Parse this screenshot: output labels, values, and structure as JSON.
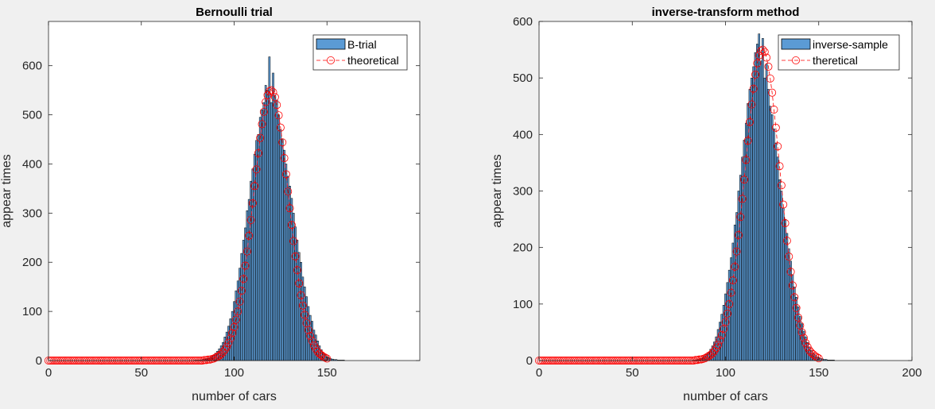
{
  "figure": {
    "background": "#f0f0f0"
  },
  "chart_data": [
    {
      "type": "bar",
      "title": "Bernoulli trial",
      "xlabel": "number of cars",
      "ylabel": "appear times",
      "xlim": [
        0,
        200
      ],
      "ylim": [
        0,
        690
      ],
      "xticks": [
        0,
        50,
        100,
        150
      ],
      "xtick_labels": [
        "0",
        "50",
        "100",
        "150"
      ],
      "yticks": [
        0,
        100,
        200,
        300,
        400,
        500,
        600
      ],
      "ytick_labels": [
        "0",
        "100",
        "200",
        "300",
        "400",
        "500",
        "600"
      ],
      "grid": false,
      "legend_position": "top-right",
      "legend": [
        {
          "label": "B-trial",
          "kind": "bar"
        },
        {
          "label": "theoretical",
          "kind": "line-circle"
        }
      ],
      "colors": {
        "bar_fill": "#5b9bd5",
        "bar_edge": "#000000",
        "theory": "#ff0000"
      },
      "x": [
        70,
        71,
        72,
        73,
        74,
        75,
        76,
        77,
        78,
        79,
        80,
        81,
        82,
        83,
        84,
        85,
        86,
        87,
        88,
        89,
        90,
        91,
        92,
        93,
        94,
        95,
        96,
        97,
        98,
        99,
        100,
        101,
        102,
        103,
        104,
        105,
        106,
        107,
        108,
        109,
        110,
        111,
        112,
        113,
        114,
        115,
        116,
        117,
        118,
        119,
        120,
        121,
        122,
        123,
        124,
        125,
        126,
        127,
        128,
        129,
        130,
        131,
        132,
        133,
        134,
        135,
        136,
        137,
        138,
        139,
        140,
        141,
        142,
        143,
        144,
        145,
        146,
        147,
        148,
        149,
        150,
        151,
        152,
        153,
        154,
        155,
        156,
        157,
        158,
        159,
        160,
        161,
        162,
        163,
        164,
        165,
        166,
        167,
        168,
        169,
        170,
        171,
        172,
        173,
        174,
        175,
        176,
        177,
        178,
        179,
        180
      ],
      "values": [
        0,
        0,
        0,
        0,
        0,
        0,
        0,
        0,
        0,
        1,
        1,
        1,
        1,
        2,
        3,
        4,
        5,
        6,
        8,
        11,
        15,
        19,
        24,
        30,
        37,
        48,
        58,
        70,
        85,
        100,
        120,
        142,
        162,
        188,
        218,
        245,
        270,
        305,
        328,
        365,
        390,
        420,
        448,
        460,
        495,
        510,
        525,
        560,
        550,
        618,
        525,
        585,
        540,
        530,
        500,
        470,
        450,
        428,
        400,
        375,
        355,
        330,
        300,
        272,
        245,
        220,
        200,
        170,
        150,
        130,
        110,
        92,
        80,
        62,
        52,
        40,
        30,
        22,
        16,
        12,
        8,
        6,
        4,
        3,
        2,
        2,
        1,
        1,
        1,
        1,
        0,
        0,
        0,
        0,
        0,
        0,
        0,
        0,
        0,
        0,
        0,
        0,
        0,
        0,
        0,
        0,
        0,
        0,
        0,
        0,
        0
      ],
      "theory_x": [
        0,
        1,
        2,
        3,
        4,
        5,
        6,
        7,
        8,
        9,
        10,
        11,
        12,
        13,
        14,
        15,
        16,
        17,
        18,
        19,
        20,
        21,
        22,
        23,
        24,
        25,
        26,
        27,
        28,
        29,
        30,
        31,
        32,
        33,
        34,
        35,
        36,
        37,
        38,
        39,
        40,
        41,
        42,
        43,
        44,
        45,
        46,
        47,
        48,
        49,
        50,
        51,
        52,
        53,
        54,
        55,
        56,
        57,
        58,
        59,
        60,
        61,
        62,
        63,
        64,
        65,
        66,
        67,
        68,
        69,
        70,
        71,
        72,
        73,
        74,
        75,
        76,
        77,
        78,
        79,
        80,
        81,
        82,
        83,
        84,
        85,
        86,
        87,
        88,
        89,
        90,
        91,
        92,
        93,
        94,
        95,
        96,
        97,
        98,
        99,
        100,
        101,
        102,
        103,
        104,
        105,
        106,
        107,
        108,
        109,
        110,
        111,
        112,
        113,
        114,
        115,
        116,
        117,
        118,
        119,
        120,
        121,
        122,
        123,
        124,
        125,
        126,
        127,
        128,
        129,
        130,
        131,
        132,
        133,
        134,
        135,
        136,
        137,
        138,
        139,
        140,
        141,
        142,
        143,
        144,
        145,
        146,
        147,
        148,
        149,
        150
      ],
      "theory_y": [
        0,
        0,
        0,
        0,
        0,
        0,
        0,
        0,
        0,
        0,
        0,
        0,
        0,
        0,
        0,
        0,
        0,
        0,
        0,
        0,
        0,
        0,
        0,
        0,
        0,
        0,
        0,
        0,
        0,
        0,
        0,
        0,
        0,
        0,
        0,
        0,
        0,
        0,
        0,
        0,
        0,
        0,
        0,
        0,
        0,
        0,
        0,
        0,
        0,
        0,
        0,
        0,
        0,
        0,
        0,
        0,
        0,
        0,
        0,
        0,
        0,
        0,
        0,
        0,
        0,
        0,
        0,
        0,
        0,
        0,
        0,
        0,
        0,
        0,
        0,
        0,
        0,
        0,
        0,
        0,
        0,
        0,
        0,
        0,
        1,
        1,
        2,
        2,
        3,
        4,
        6,
        8,
        10,
        13,
        17,
        22,
        28,
        36,
        45,
        56,
        68,
        83,
        100,
        120,
        142,
        166,
        193,
        222,
        254,
        286,
        320,
        355,
        389,
        422,
        453,
        481,
        506,
        526,
        540,
        548,
        550,
        546,
        536,
        520,
        499,
        474,
        444,
        412,
        379,
        344,
        310,
        276,
        243,
        212,
        184,
        157,
        133,
        112,
        93,
        76,
        62,
        50,
        40,
        31,
        24,
        18,
        14,
        11,
        8,
        6,
        4
      ]
    },
    {
      "type": "bar",
      "title": "inverse-transform method",
      "xlabel": "number of cars",
      "ylabel": "appear times",
      "xlim": [
        0,
        200
      ],
      "ylim": [
        0,
        600
      ],
      "xticks": [
        0,
        50,
        100,
        150,
        200
      ],
      "xtick_labels": [
        "0",
        "50",
        "100",
        "150",
        "200"
      ],
      "yticks": [
        0,
        100,
        200,
        300,
        400,
        500,
        600
      ],
      "ytick_labels": [
        "0",
        "100",
        "200",
        "300",
        "400",
        "500",
        "600"
      ],
      "grid": false,
      "legend_position": "top-right",
      "legend": [
        {
          "label": "inverse-sample",
          "kind": "bar"
        },
        {
          "label": "theretical",
          "kind": "line-circle"
        }
      ],
      "colors": {
        "bar_fill": "#5b9bd5",
        "bar_edge": "#000000",
        "theory": "#ff0000"
      },
      "x": [
        75,
        76,
        77,
        78,
        79,
        80,
        81,
        82,
        83,
        84,
        85,
        86,
        87,
        88,
        89,
        90,
        91,
        92,
        93,
        94,
        95,
        96,
        97,
        98,
        99,
        100,
        101,
        102,
        103,
        104,
        105,
        106,
        107,
        108,
        109,
        110,
        111,
        112,
        113,
        114,
        115,
        116,
        117,
        118,
        119,
        120,
        121,
        122,
        123,
        124,
        125,
        126,
        127,
        128,
        129,
        130,
        131,
        132,
        133,
        134,
        135,
        136,
        137,
        138,
        139,
        140,
        141,
        142,
        143,
        144,
        145,
        146,
        147,
        148,
        149,
        150,
        151,
        152,
        153,
        154,
        155,
        156,
        157,
        158,
        159,
        160
      ],
      "values": [
        0,
        0,
        0,
        0,
        0,
        0,
        0,
        0,
        1,
        1,
        2,
        3,
        4,
        6,
        8,
        11,
        15,
        20,
        26,
        33,
        42,
        55,
        68,
        82,
        98,
        118,
        138,
        160,
        182,
        208,
        240,
        262,
        300,
        328,
        360,
        390,
        420,
        455,
        480,
        500,
        520,
        545,
        560,
        578,
        530,
        570,
        500,
        525,
        480,
        450,
        435,
        410,
        385,
        360,
        320,
        300,
        270,
        250,
        225,
        198,
        176,
        152,
        130,
        112,
        95,
        78,
        65,
        52,
        42,
        32,
        24,
        18,
        13,
        10,
        7,
        5,
        4,
        3,
        2,
        2,
        1,
        1,
        1,
        1,
        0,
        0
      ],
      "theory_x": [
        0,
        1,
        2,
        3,
        4,
        5,
        6,
        7,
        8,
        9,
        10,
        11,
        12,
        13,
        14,
        15,
        16,
        17,
        18,
        19,
        20,
        21,
        22,
        23,
        24,
        25,
        26,
        27,
        28,
        29,
        30,
        31,
        32,
        33,
        34,
        35,
        36,
        37,
        38,
        39,
        40,
        41,
        42,
        43,
        44,
        45,
        46,
        47,
        48,
        49,
        50,
        51,
        52,
        53,
        54,
        55,
        56,
        57,
        58,
        59,
        60,
        61,
        62,
        63,
        64,
        65,
        66,
        67,
        68,
        69,
        70,
        71,
        72,
        73,
        74,
        75,
        76,
        77,
        78,
        79,
        80,
        81,
        82,
        83,
        84,
        85,
        86,
        87,
        88,
        89,
        90,
        91,
        92,
        93,
        94,
        95,
        96,
        97,
        98,
        99,
        100,
        101,
        102,
        103,
        104,
        105,
        106,
        107,
        108,
        109,
        110,
        111,
        112,
        113,
        114,
        115,
        116,
        117,
        118,
        119,
        120,
        121,
        122,
        123,
        124,
        125,
        126,
        127,
        128,
        129,
        130,
        131,
        132,
        133,
        134,
        135,
        136,
        137,
        138,
        139,
        140,
        141,
        142,
        143,
        144,
        145,
        146,
        147,
        148,
        149,
        150
      ],
      "theory_y": [
        0,
        0,
        0,
        0,
        0,
        0,
        0,
        0,
        0,
        0,
        0,
        0,
        0,
        0,
        0,
        0,
        0,
        0,
        0,
        0,
        0,
        0,
        0,
        0,
        0,
        0,
        0,
        0,
        0,
        0,
        0,
        0,
        0,
        0,
        0,
        0,
        0,
        0,
        0,
        0,
        0,
        0,
        0,
        0,
        0,
        0,
        0,
        0,
        0,
        0,
        0,
        0,
        0,
        0,
        0,
        0,
        0,
        0,
        0,
        0,
        0,
        0,
        0,
        0,
        0,
        0,
        0,
        0,
        0,
        0,
        0,
        0,
        0,
        0,
        0,
        0,
        0,
        0,
        0,
        0,
        0,
        0,
        0,
        0,
        1,
        1,
        2,
        2,
        3,
        4,
        6,
        8,
        10,
        13,
        17,
        22,
        28,
        36,
        45,
        56,
        68,
        83,
        100,
        120,
        142,
        166,
        193,
        222,
        254,
        286,
        320,
        355,
        389,
        422,
        453,
        481,
        506,
        526,
        540,
        548,
        550,
        546,
        536,
        520,
        499,
        474,
        444,
        412,
        379,
        344,
        310,
        276,
        243,
        212,
        184,
        157,
        133,
        112,
        93,
        76,
        62,
        50,
        40,
        31,
        24,
        18,
        14,
        11,
        8,
        6,
        4
      ]
    }
  ]
}
